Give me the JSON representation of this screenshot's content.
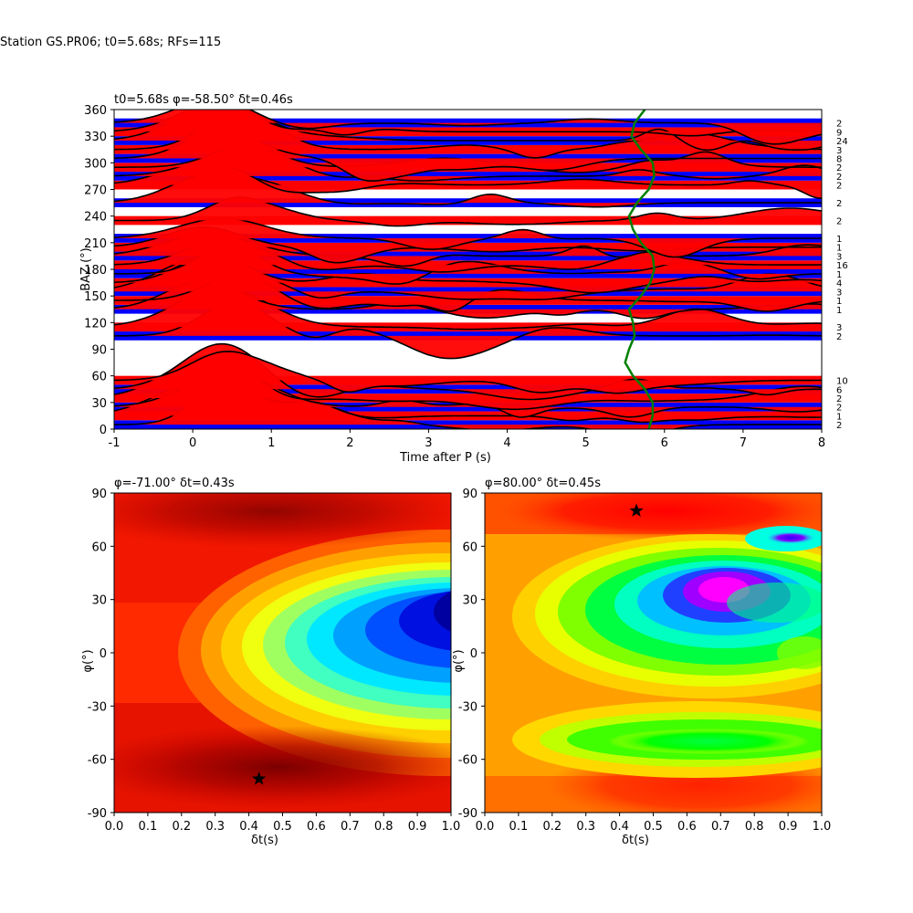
{
  "figure": {
    "suptitle": "Station GS.PR06; t0=5.68s; RFs=115"
  },
  "chart_data": [
    {
      "type": "line",
      "title": "t0=5.68s φ=-58.50° δt=0.46s",
      "xlabel": "Time after P (s)",
      "ylabel": "BAZ (°)",
      "xlim": [
        -1,
        8
      ],
      "ylim": [
        0,
        360
      ],
      "xticks": [
        "-1",
        "0",
        "1",
        "2",
        "3",
        "4",
        "5",
        "6",
        "7",
        "8"
      ],
      "yticks": [
        "0",
        "30",
        "60",
        "90",
        "120",
        "150",
        "180",
        "210",
        "240",
        "270",
        "300",
        "330",
        "360"
      ],
      "positive_fill": "#ff0000",
      "negative_fill": "#0000ff",
      "trace_color": "#000000",
      "model_curve_color": "#008000",
      "trace_baz": [
        5,
        15,
        25,
        35,
        45,
        55,
        105,
        115,
        135,
        145,
        155,
        165,
        175,
        185,
        195,
        205,
        215,
        235,
        255,
        275,
        285,
        295,
        305,
        315,
        325,
        335,
        345
      ],
      "counts": [
        "2",
        "1",
        "2",
        "2",
        "6",
        "10",
        "2",
        "3",
        "1",
        "1",
        "3",
        "4",
        "1",
        "16",
        "3",
        "1",
        "1",
        "2",
        "2",
        "2",
        "2",
        "2",
        "8",
        "3",
        "24",
        "9",
        "2"
      ],
      "model_curve": {
        "baz": [
          0,
          15,
          30,
          45,
          60,
          75,
          90,
          105,
          120,
          135,
          150,
          165,
          180,
          195,
          210,
          225,
          240,
          255,
          270,
          285,
          300,
          315,
          330,
          345,
          360
        ],
        "time": [
          5.8,
          5.85,
          5.85,
          5.75,
          5.6,
          5.5,
          5.55,
          5.62,
          5.6,
          5.55,
          5.7,
          5.82,
          5.87,
          5.85,
          5.7,
          5.6,
          5.55,
          5.65,
          5.8,
          5.87,
          5.85,
          5.7,
          5.58,
          5.62,
          5.75
        ]
      }
    },
    {
      "type": "heatmap",
      "title": "φ=-71.00° δt=0.43s",
      "xlabel": "δt(s)",
      "ylabel": "φ(°)",
      "xlim": [
        0,
        1
      ],
      "ylim": [
        -90,
        90
      ],
      "xticks": [
        "0.0",
        "0.1",
        "0.2",
        "0.3",
        "0.4",
        "0.5",
        "0.6",
        "0.7",
        "0.8",
        "0.9",
        "1.0"
      ],
      "yticks": [
        "-90",
        "-60",
        "-30",
        "0",
        "30",
        "60",
        "90"
      ],
      "best": {
        "dt": 0.43,
        "phi": -71
      },
      "colormap": "jet"
    },
    {
      "type": "heatmap",
      "title": "φ=80.00° δt=0.45s",
      "xlabel": "δt(s)",
      "ylabel": "φ(°)",
      "xlim": [
        0,
        1
      ],
      "ylim": [
        -90,
        90
      ],
      "xticks": [
        "0.0",
        "0.1",
        "0.2",
        "0.3",
        "0.4",
        "0.5",
        "0.6",
        "0.7",
        "0.8",
        "0.9",
        "1.0"
      ],
      "yticks": [
        "-90",
        "-60",
        "-30",
        "0",
        "30",
        "60",
        "90"
      ],
      "best": {
        "dt": 0.45,
        "phi": 80
      },
      "colormap": "hsv"
    }
  ]
}
